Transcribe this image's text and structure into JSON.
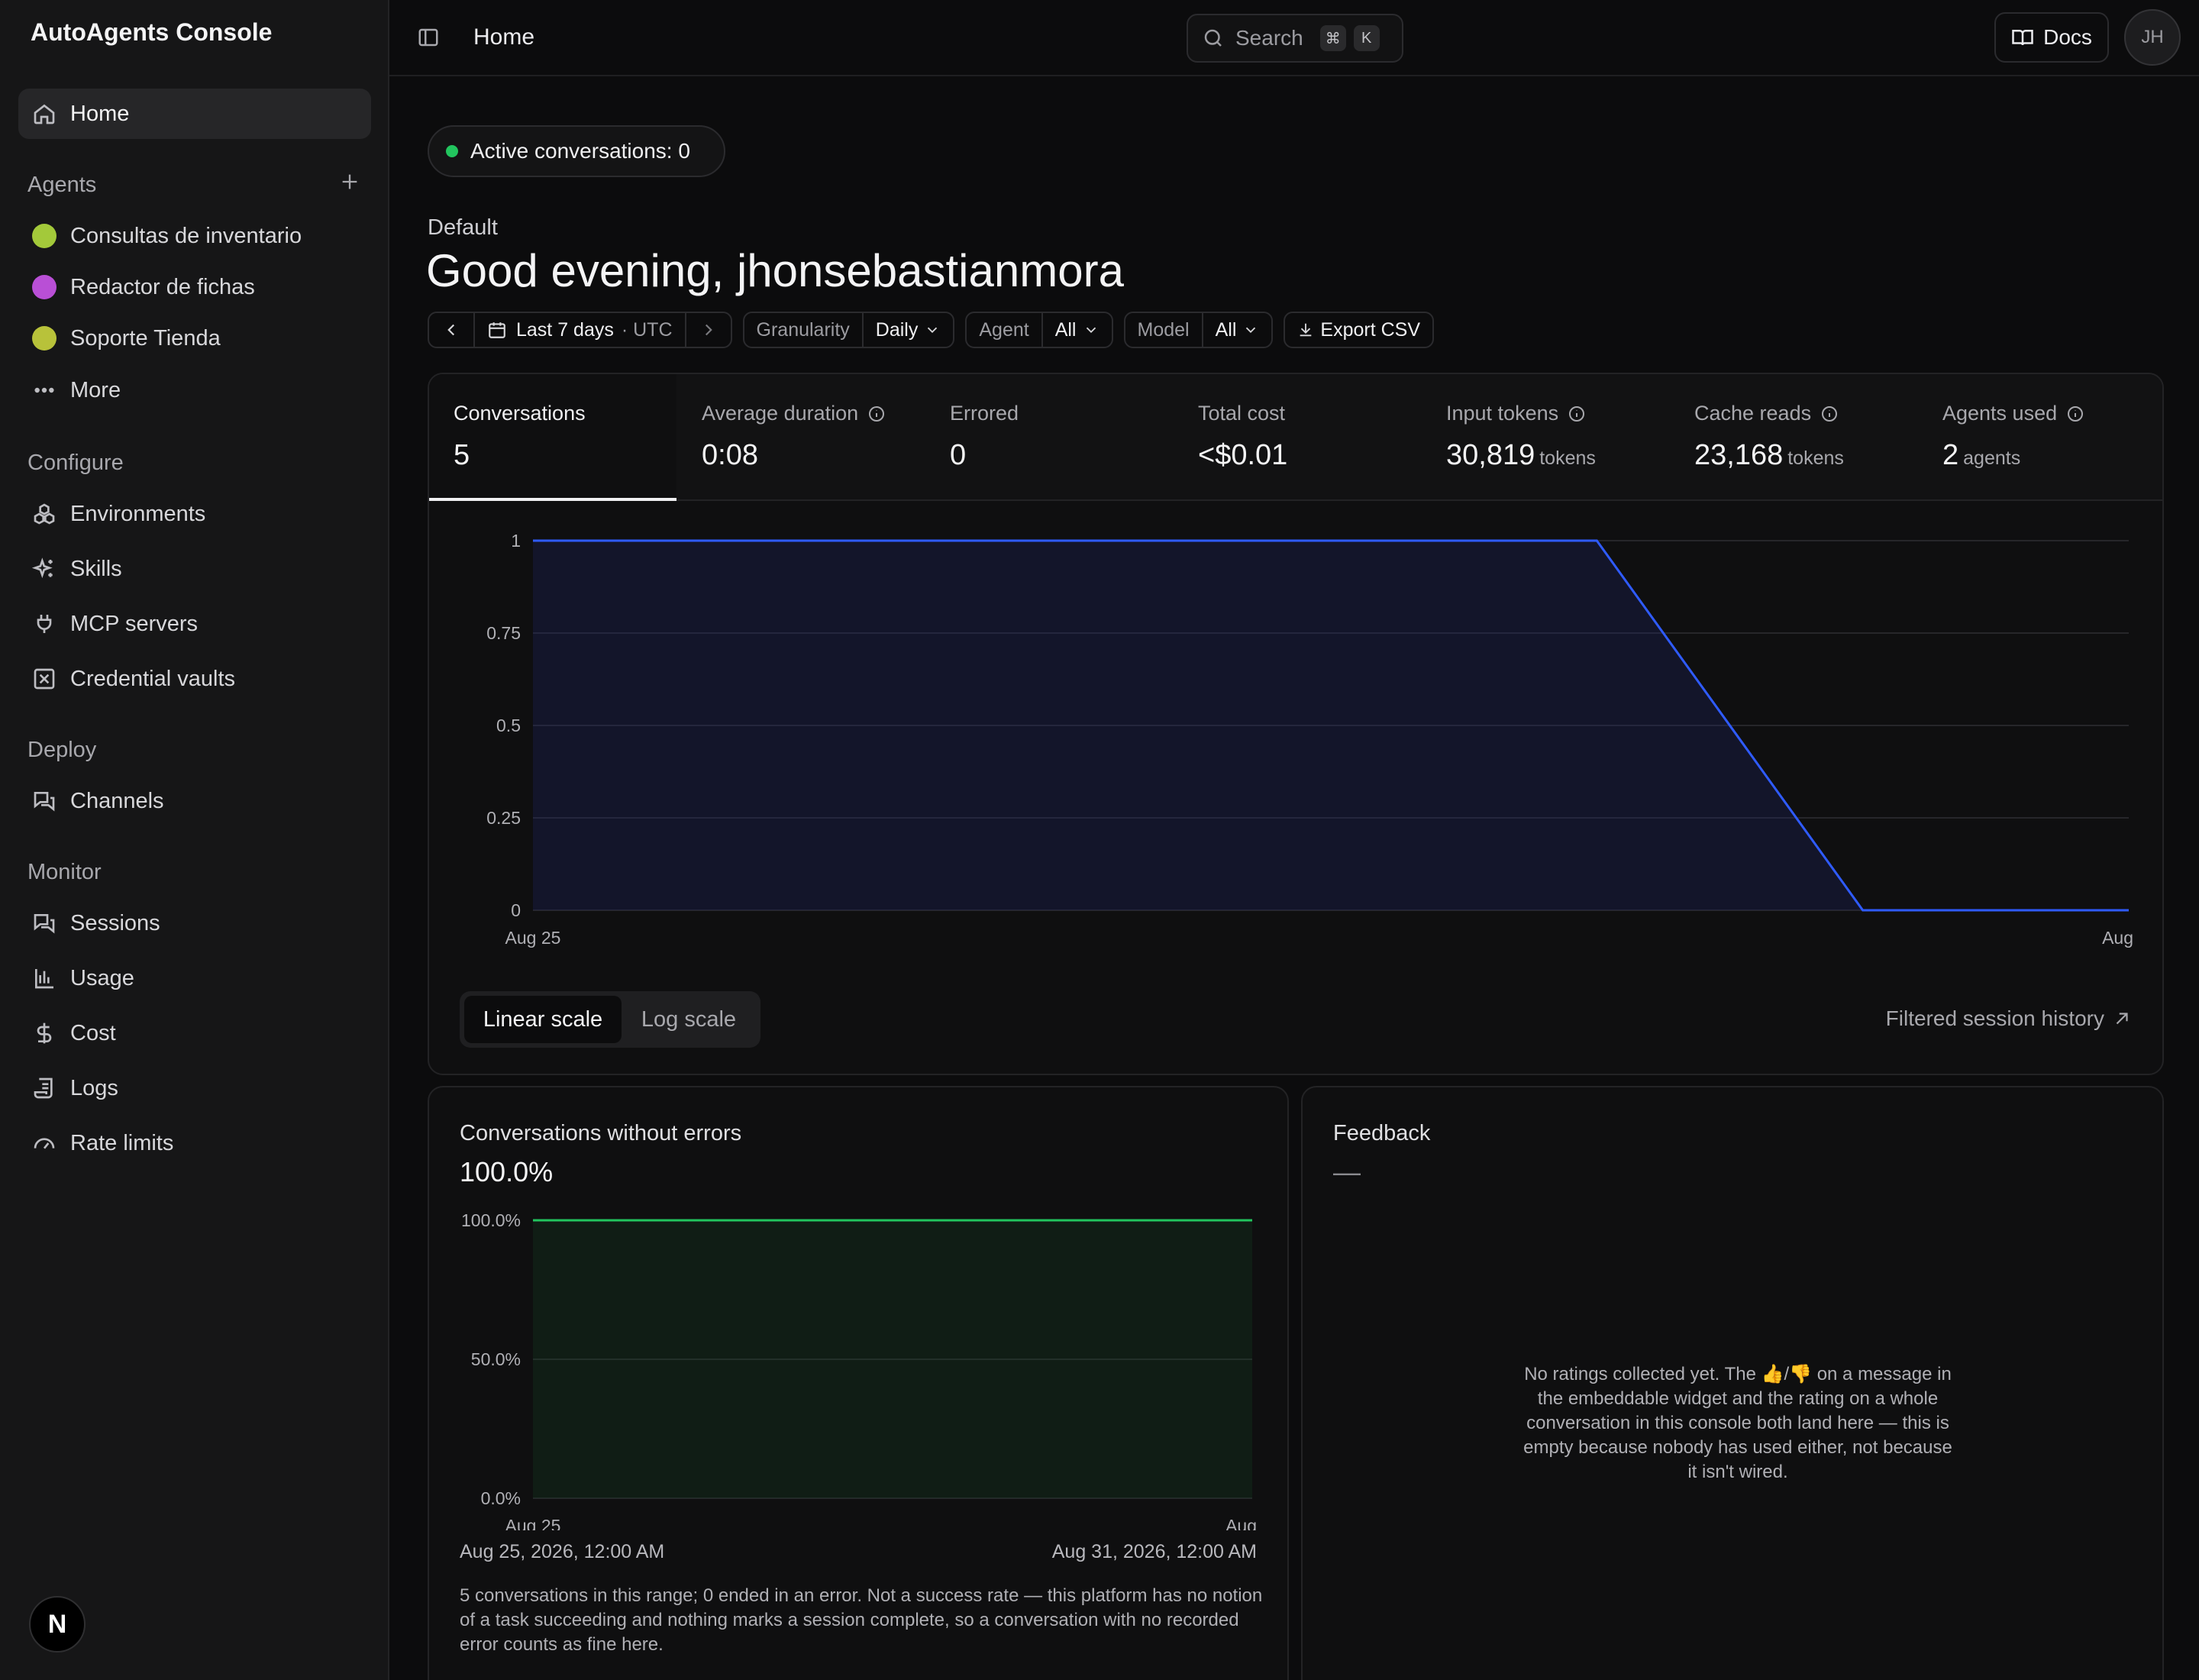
{
  "app": {
    "title": "AutoAgents Console"
  },
  "sidebar": {
    "home": "Home",
    "agents_label": "Agents",
    "agents": [
      {
        "label": "Consultas de inventario",
        "color": "#a3c93a"
      },
      {
        "label": "Redactor de fichas",
        "color": "#b94fd6"
      },
      {
        "label": "Soporte Tienda",
        "color": "#b8c23a"
      }
    ],
    "more": "More",
    "configure_label": "Configure",
    "configure": [
      {
        "label": "Environments",
        "icon": "environments-icon"
      },
      {
        "label": "Skills",
        "icon": "skills-icon"
      },
      {
        "label": "MCP servers",
        "icon": "plug-icon"
      },
      {
        "label": "Credential vaults",
        "icon": "vault-icon"
      }
    ],
    "deploy_label": "Deploy",
    "deploy": [
      {
        "label": "Channels",
        "icon": "chat-icon"
      }
    ],
    "monitor_label": "Monitor",
    "monitor": [
      {
        "label": "Sessions",
        "icon": "chat-icon"
      },
      {
        "label": "Usage",
        "icon": "bar-chart-icon"
      },
      {
        "label": "Cost",
        "icon": "dollar-icon"
      },
      {
        "label": "Logs",
        "icon": "logs-icon"
      },
      {
        "label": "Rate limits",
        "icon": "gauge-icon"
      }
    ],
    "footer_logo": "N"
  },
  "topbar": {
    "title": "Home",
    "search_label": "Search",
    "kbd1": "⌘",
    "kbd2": "K",
    "docs": "Docs",
    "avatar": "JH"
  },
  "main": {
    "active_conversations": "Active conversations: 0",
    "workspace": "Default",
    "greeting": "Good evening, jhonsebastianmora",
    "filters": {
      "range": "Last 7 days",
      "tz": "· UTC",
      "granularity_label": "Granularity",
      "granularity": "Daily",
      "agent_label": "Agent",
      "agent": "All",
      "model_label": "Model",
      "model": "All",
      "export": "Export CSV"
    },
    "stats": [
      {
        "label": "Conversations",
        "value": "5",
        "unit": "",
        "info": false
      },
      {
        "label": "Average duration",
        "value": "0:08",
        "unit": "",
        "info": true
      },
      {
        "label": "Errored",
        "value": "0",
        "unit": "",
        "info": false
      },
      {
        "label": "Total cost",
        "value": "<$0.01",
        "unit": "",
        "info": false
      },
      {
        "label": "Input tokens",
        "value": "30,819",
        "unit": "tokens",
        "info": true
      },
      {
        "label": "Cache reads",
        "value": "23,168",
        "unit": "tokens",
        "info": true
      },
      {
        "label": "Agents used",
        "value": "2",
        "unit": "agents",
        "info": true
      }
    ],
    "scale": {
      "linear": "Linear scale",
      "log": "Log scale"
    },
    "history_link": "Filtered session history",
    "errors_card": {
      "title": "Conversations without errors",
      "value": "100.0%",
      "range_start": "Aug 25, 2026, 12:00 AM",
      "range_end": "Aug 31, 2026, 12:00 AM",
      "footnote": "5 conversations in this range; 0 ended in an error. Not a success rate — this platform has no notion of a task succeeding and nothing marks a session complete, so a conversation with no recorded error counts as fine here."
    },
    "feedback_card": {
      "title": "Feedback",
      "value": "—",
      "empty": "No ratings collected yet. The 👍/👎 on a message in the embeddable widget and the rating on a whole conversation in this console both land here — this is empty because nobody has used either, not because it isn't wired."
    }
  },
  "chart_data": [
    {
      "type": "area",
      "series_color": "#2f5bff",
      "x": [
        0,
        1,
        2,
        3,
        4,
        5,
        6
      ],
      "values": [
        1,
        1,
        1,
        1,
        1,
        0,
        0
      ],
      "y_ticks": [
        "0",
        "0.25",
        "0.5",
        "0.75",
        "1"
      ],
      "ylim": [
        0,
        1
      ],
      "x_tick_labels": [
        "Aug 25",
        "Aug"
      ],
      "grid": true
    },
    {
      "type": "area",
      "series_color": "#22c55e",
      "x": [
        0,
        1,
        2,
        3,
        4,
        5,
        6
      ],
      "values": [
        100,
        100,
        100,
        100,
        100,
        100,
        100
      ],
      "y_ticks": [
        "0.0%",
        "50.0%",
        "100.0%"
      ],
      "ylim": [
        0,
        100
      ],
      "x_tick_labels": [
        "Aug 25",
        "Aug"
      ],
      "grid": true
    }
  ]
}
